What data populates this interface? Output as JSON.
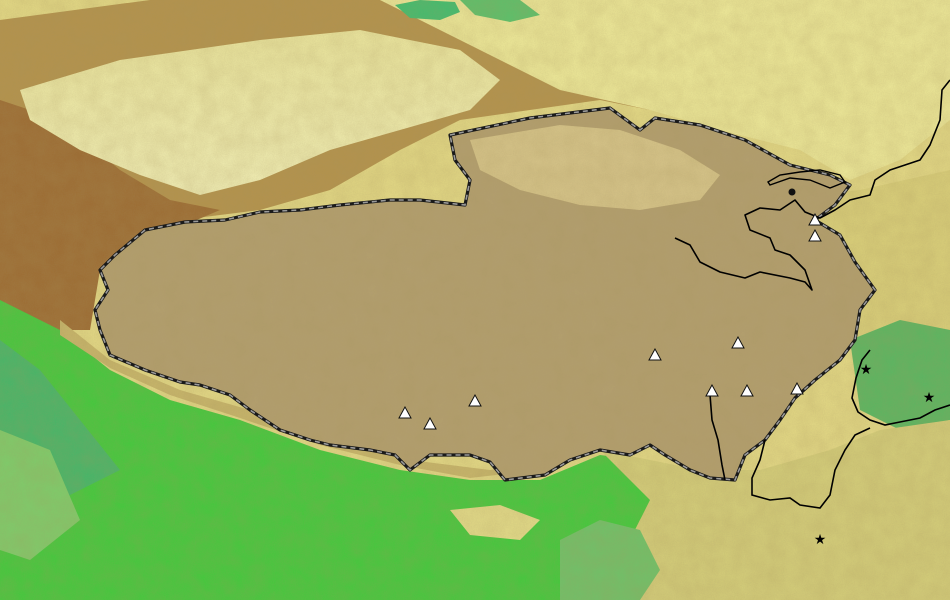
{
  "map": {
    "type": "relief-map",
    "region_label": "",
    "colors": {
      "lowland_green": "#33cc33",
      "mid_green": "#66cc66",
      "light_yellow": "#f2f0a0",
      "yellow": "#e8e08a",
      "olive": "#b89a4a",
      "brown": "#a0703a",
      "plateau": "#b09a6a",
      "boundary": "#1a1a1a",
      "river": "#000000",
      "marker_fill": "#ffffff",
      "marker_stroke": "#111111"
    },
    "marker_types": {
      "triangle": "white-triangle",
      "star": "black-star",
      "dot": "black-dot"
    }
  }
}
